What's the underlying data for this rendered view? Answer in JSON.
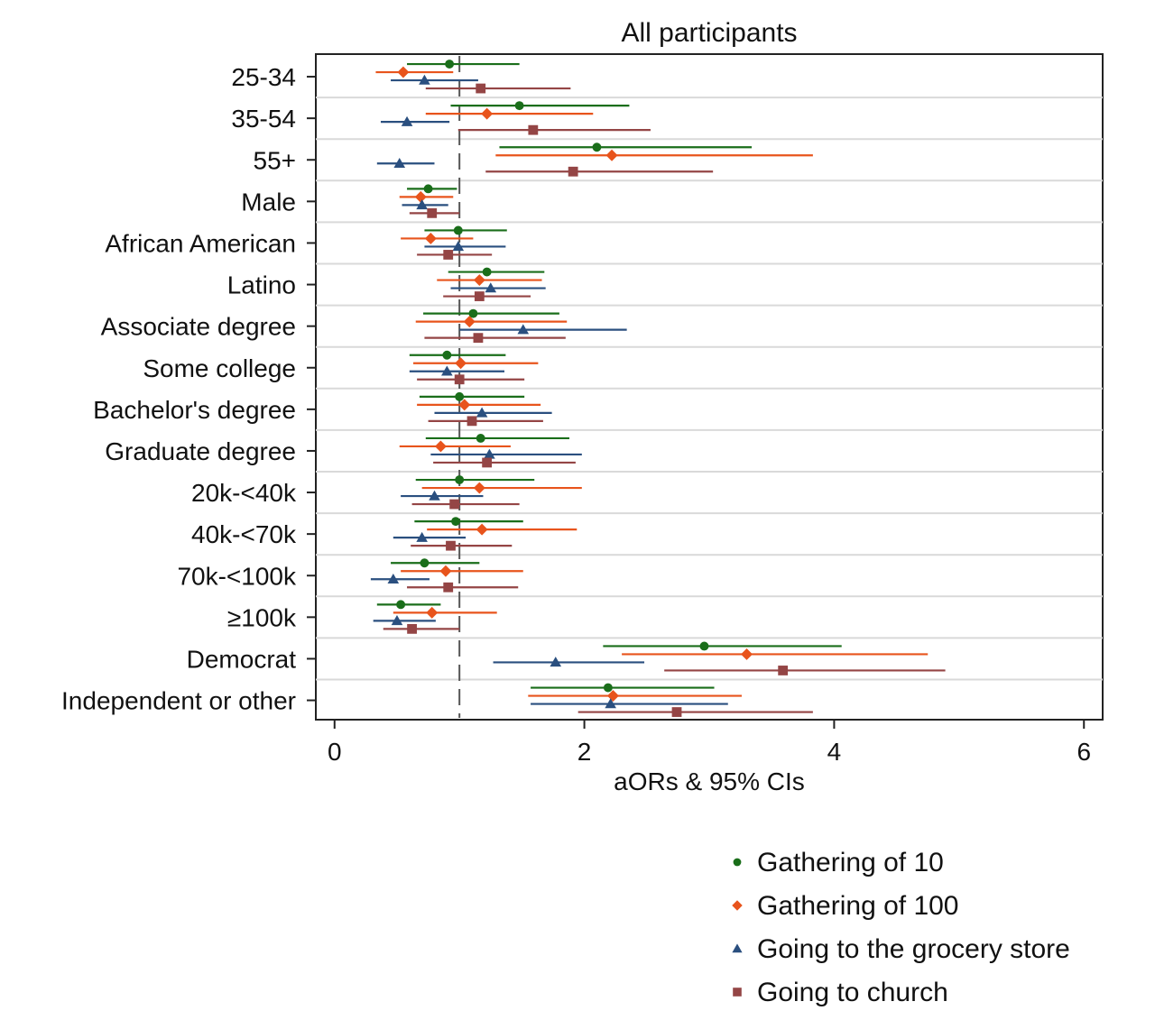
{
  "chart_data": {
    "type": "forest",
    "title": "All participants",
    "xlabel": "aORs & 95% CIs",
    "ylabel": "",
    "xlim": [
      -0.15,
      6.15
    ],
    "xticks": [
      0,
      2,
      4,
      6
    ],
    "reference_line": 1,
    "grid": "horizontal separators",
    "legend_position": "bottom-right",
    "categories": [
      "25-34",
      "35-54",
      "55+",
      "Male",
      "African American",
      "Latino",
      "Associate degree",
      "Some college",
      "Bachelor's degree",
      "Graduate degree",
      "20k-<40k",
      "40k-<70k",
      "70k-<100k",
      "≥100k",
      "Democrat",
      "Independent or other"
    ],
    "series": [
      {
        "name": "Gathering of 10",
        "color": "#1a6e1a",
        "marker": "circle",
        "estimate": [
          0.92,
          1.48,
          2.1,
          0.75,
          0.99,
          1.22,
          1.11,
          0.9,
          1.0,
          1.17,
          1.0,
          0.97,
          0.72,
          0.53,
          2.96,
          2.19
        ],
        "lower": [
          0.58,
          0.93,
          1.32,
          0.58,
          0.72,
          0.91,
          0.71,
          0.6,
          0.68,
          0.73,
          0.65,
          0.64,
          0.45,
          0.34,
          2.15,
          1.57
        ],
        "upper": [
          1.48,
          2.36,
          3.34,
          0.98,
          1.38,
          1.68,
          1.8,
          1.37,
          1.52,
          1.88,
          1.6,
          1.51,
          1.16,
          0.85,
          4.06,
          3.04
        ]
      },
      {
        "name": "Gathering of 100",
        "color": "#e8541c",
        "marker": "diamond",
        "estimate": [
          0.55,
          1.22,
          2.22,
          0.69,
          0.77,
          1.16,
          1.08,
          1.01,
          1.04,
          0.85,
          1.16,
          1.18,
          0.89,
          0.78,
          3.3,
          2.23
        ],
        "lower": [
          0.33,
          0.73,
          1.29,
          0.52,
          0.53,
          0.82,
          0.65,
          0.63,
          0.66,
          0.52,
          0.7,
          0.74,
          0.53,
          0.47,
          2.3,
          1.55
        ],
        "upper": [
          0.95,
          2.07,
          3.83,
          0.95,
          1.11,
          1.66,
          1.86,
          1.63,
          1.65,
          1.41,
          1.98,
          1.94,
          1.51,
          1.3,
          4.75,
          3.26
        ]
      },
      {
        "name": "Going to the grocery store",
        "color": "#2a4f7f",
        "marker": "triangle",
        "estimate": [
          0.72,
          0.58,
          0.52,
          0.7,
          0.99,
          1.25,
          1.51,
          0.9,
          1.18,
          1.24,
          0.8,
          0.7,
          0.47,
          0.5,
          1.77,
          2.21
        ],
        "lower": [
          0.45,
          0.37,
          0.34,
          0.54,
          0.72,
          0.93,
          1.0,
          0.6,
          0.8,
          0.77,
          0.53,
          0.47,
          0.29,
          0.31,
          1.27,
          1.57
        ],
        "upper": [
          1.15,
          0.92,
          0.8,
          0.91,
          1.37,
          1.69,
          2.34,
          1.36,
          1.74,
          1.98,
          1.19,
          1.05,
          0.76,
          0.81,
          2.48,
          3.15
        ]
      },
      {
        "name": "Going to church",
        "color": "#944545",
        "marker": "square",
        "estimate": [
          1.17,
          1.59,
          1.91,
          0.78,
          0.91,
          1.16,
          1.15,
          1.0,
          1.1,
          1.22,
          0.96,
          0.93,
          0.91,
          0.62,
          3.59,
          2.74
        ],
        "lower": [
          0.73,
          0.99,
          1.21,
          0.6,
          0.66,
          0.87,
          0.72,
          0.66,
          0.75,
          0.79,
          0.62,
          0.61,
          0.58,
          0.39,
          2.64,
          1.95
        ],
        "upper": [
          1.89,
          2.53,
          3.03,
          1.0,
          1.26,
          1.57,
          1.85,
          1.52,
          1.67,
          1.93,
          1.48,
          1.42,
          1.47,
          1.0,
          4.89,
          3.83
        ]
      }
    ]
  }
}
